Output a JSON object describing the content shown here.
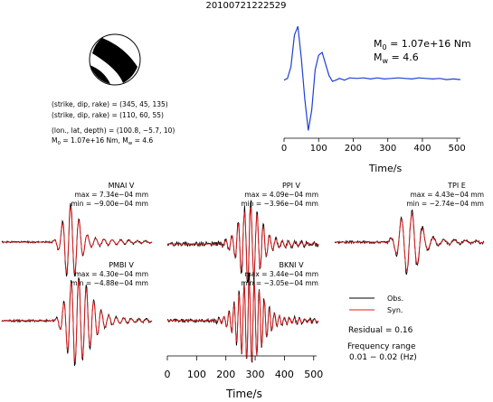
{
  "figure_title": "20100721222529",
  "source_info": {
    "line1": "(strike, dip, rake) = (345, 45, 135)",
    "line2": "(strike, dip, rake) = (110, 60, 55)",
    "line3": "(lon., lat, depth) = (100.8, −5.7, 10)",
    "line4_pre": "M",
    "line4_sub": "0",
    "line4_mid": " = 1.07e+16 Nm, M",
    "line4_sub2": "w",
    "line4_post": " = 4.6"
  },
  "stf_labels": {
    "m0_sym": "M",
    "m0_sub": "0",
    "m0_text": " = 1.07e+16 Nm",
    "mw_sym": "M",
    "mw_sub": "w",
    "mw_text": " = 4.6"
  },
  "colors": {
    "obs": "#000000",
    "syn": "#e41a1c",
    "stf": "#1f3fd6",
    "beachball": "#000000"
  },
  "legend": {
    "obs_label": "Obs.",
    "syn_label": "Syn."
  },
  "residual_text": "Residual = 0.16",
  "frequency_title": "Frequency range",
  "frequency_value": "0.01 − 0.02 (Hz)",
  "chart_data": [
    {
      "type": "line",
      "id": "source-time-function",
      "xlabel": "Time/s",
      "xlim": [
        0,
        510
      ],
      "xticks": [
        0,
        100,
        200,
        300,
        400,
        500
      ],
      "series": [
        {
          "color": "#1f3fd6",
          "x": [
            0,
            10,
            20,
            30,
            40,
            50,
            60,
            70,
            80,
            90,
            100,
            110,
            120,
            130,
            140,
            150,
            160,
            175,
            190,
            210,
            230,
            250,
            270,
            290,
            310,
            330,
            350,
            370,
            390,
            410,
            430,
            450,
            470,
            490,
            510
          ],
          "y": [
            0.02,
            0.05,
            0.25,
            0.8,
            0.95,
            0.4,
            -0.3,
            -0.85,
            -0.5,
            0.2,
            0.45,
            0.5,
            0.3,
            0.1,
            0.0,
            0.02,
            0.05,
            0.02,
            0.06,
            0.05,
            0.06,
            0.04,
            0.06,
            0.04,
            0.05,
            0.06,
            0.05,
            0.04,
            0.06,
            0.05,
            0.04,
            0.05,
            0.03,
            0.04,
            0.03
          ]
        }
      ]
    },
    {
      "type": "line",
      "id": "waveforms",
      "xlabel": "Time/s",
      "xlim": [
        0,
        510
      ],
      "xticks": [
        0,
        100,
        200,
        300,
        400,
        500
      ],
      "stations": [
        {
          "name": "MNAI V",
          "max": "max = 7.34e−04 mm",
          "min": "min = −9.00e−04 mm",
          "amp": 0.9,
          "start": 0.33,
          "peak": 0.46,
          "width": 0.07,
          "freq": 18,
          "noise": 0.05,
          "seed": 1
        },
        {
          "name": "PPI V",
          "max": "max = 4.09e−04 mm",
          "min": "min = −3.96e−04 mm",
          "amp": 0.95,
          "start": 0.32,
          "peak": 0.55,
          "width": 0.09,
          "freq": 24,
          "noise": 0.12,
          "seed": 2
        },
        {
          "name": "TPI E",
          "max": "max = 4.43e−04 mm",
          "min": "min = −2.74e−04 mm",
          "amp": 0.85,
          "start": 0.33,
          "peak": 0.5,
          "width": 0.09,
          "freq": 14,
          "noise": 0.08,
          "seed": 3
        },
        {
          "name": "PMBI V",
          "max": "max = 4.30e−04 mm",
          "min": "min = −4.88e−04 mm",
          "amp": 1.0,
          "start": 0.35,
          "peak": 0.5,
          "width": 0.12,
          "freq": 20,
          "noise": 0.06,
          "seed": 4
        },
        {
          "name": "BKNI V",
          "max": "max = 3.44e−04 mm",
          "min": "min = −3.05e−04 mm",
          "amp": 1.0,
          "start": 0.3,
          "peak": 0.55,
          "width": 0.1,
          "freq": 30,
          "noise": 0.1,
          "seed": 5
        }
      ]
    }
  ]
}
